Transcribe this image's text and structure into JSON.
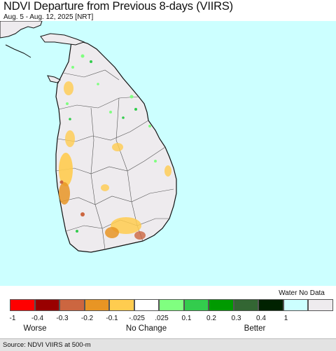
{
  "header": {
    "title": "NDVI Departure from Previous 8-days (VIIRS)",
    "subtitle": "Aug. 5 - Aug. 12, 2025 [NRT]"
  },
  "map": {
    "region": "Sri Lanka",
    "water_color": "#ccffff",
    "land_nodata_color": "#eeebee"
  },
  "legend": {
    "water_no_data_label": "Water No Data",
    "swatches": [
      {
        "color": "#ff0000"
      },
      {
        "color": "#990000"
      },
      {
        "color": "#cc6640"
      },
      {
        "color": "#e89524"
      },
      {
        "color": "#ffcc4f"
      },
      {
        "color": "#ffffff"
      },
      {
        "color": "#80ff80"
      },
      {
        "color": "#33cc4d"
      },
      {
        "color": "#009a00"
      },
      {
        "color": "#336633"
      },
      {
        "color": "#002200"
      },
      {
        "color": "#ccffff"
      },
      {
        "color": "#eeebee"
      }
    ],
    "ticks": [
      "-1",
      "-0.4",
      "-0.3",
      "-0.2",
      "-0.1",
      "-.025",
      ".025",
      "0.1",
      "0.2",
      "0.3",
      "0.4",
      "1"
    ],
    "categories": {
      "worse": "Worse",
      "no_change": "No Change",
      "better": "Better"
    }
  },
  "footer": {
    "source": "Source: NDVI VIIRS at 500-m"
  }
}
